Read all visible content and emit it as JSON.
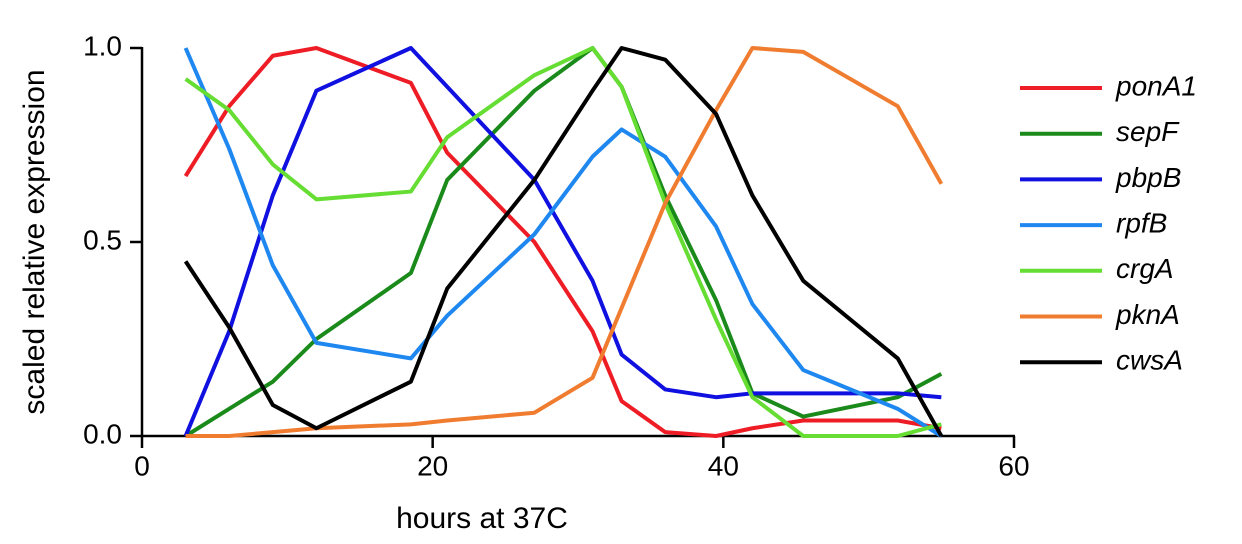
{
  "chart_data": {
    "type": "line",
    "x": [
      3,
      6,
      9,
      12,
      18.5,
      21,
      27,
      31,
      33,
      36,
      39.5,
      42,
      45.5,
      52,
      55
    ],
    "series": [
      {
        "name": "ponA1",
        "color": "#ee1c25",
        "values": [
          0.67,
          0.85,
          0.98,
          1.0,
          0.91,
          0.73,
          0.5,
          0.27,
          0.09,
          0.01,
          0.0,
          0.02,
          0.04,
          0.04,
          0.02
        ]
      },
      {
        "name": "sepF",
        "color": "#1a8a1a",
        "values": [
          0,
          0.07,
          0.14,
          0.25,
          0.42,
          0.66,
          0.89,
          1.0,
          0.9,
          0.62,
          0.35,
          0.11,
          0.05,
          0.1,
          0.16
        ]
      },
      {
        "name": "pbpB",
        "color": "#1010e0",
        "values": [
          0,
          0.27,
          0.62,
          0.89,
          1.0,
          0.9,
          0.66,
          0.4,
          0.21,
          0.12,
          0.1,
          0.11,
          0.11,
          0.11,
          0.1
        ]
      },
      {
        "name": "rpfB",
        "color": "#1e88f0",
        "values": [
          1.0,
          0.74,
          0.44,
          0.24,
          0.2,
          0.31,
          0.52,
          0.72,
          0.79,
          0.72,
          0.54,
          0.34,
          0.17,
          0.07,
          0.0
        ]
      },
      {
        "name": "crgA",
        "color": "#66dd33",
        "values": [
          0.92,
          0.84,
          0.7,
          0.61,
          0.63,
          0.77,
          0.93,
          1.0,
          0.9,
          0.6,
          0.3,
          0.1,
          0.0,
          0.0,
          0.03
        ]
      },
      {
        "name": "pknA",
        "color": "#f07c30",
        "values": [
          0.0,
          0.0,
          0.01,
          0.02,
          0.03,
          0.04,
          0.06,
          0.15,
          0.33,
          0.6,
          0.84,
          1.0,
          0.99,
          0.85,
          0.65
        ]
      },
      {
        "name": "cwsA",
        "color": "#000000",
        "values": [
          0.45,
          0.28,
          0.08,
          0.02,
          0.14,
          0.38,
          0.66,
          0.89,
          1.0,
          0.97,
          0.83,
          0.62,
          0.4,
          0.2,
          0.0
        ]
      }
    ],
    "xlabel": "hours at 37C",
    "ylabel": "scaled relative expression",
    "xlim": [
      0,
      60
    ],
    "ylim": [
      0,
      1
    ],
    "xticks": [
      0,
      20,
      40,
      60
    ],
    "yticks": [
      {
        "value": 0,
        "label": "0.0"
      },
      {
        "value": 0.5,
        "label": "0.5"
      },
      {
        "value": 1,
        "label": "1.0"
      }
    ],
    "legend": "right"
  }
}
